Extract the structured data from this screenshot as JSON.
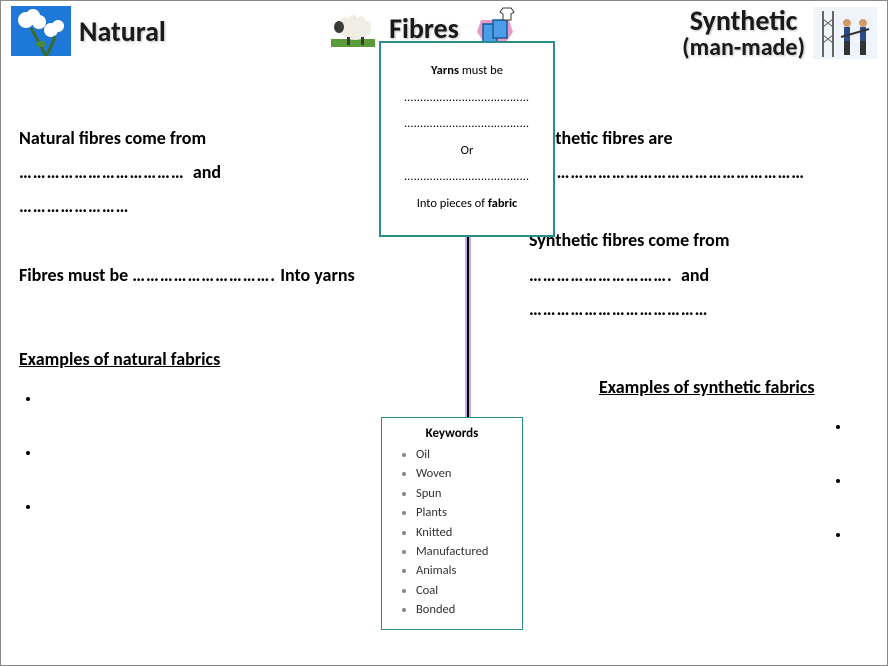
{
  "header": {
    "natural_label": "Natural",
    "fibres_label": "Fibres",
    "synthetic_label": "Synthetic",
    "synthetic_sub": "(man-made)"
  },
  "left": {
    "line1": "Natural fibres come from",
    "blank1": "………………………………",
    "and": "and",
    "blank2": "……………………",
    "line2a": "Fibres must be",
    "blank3": "………………………….",
    "line2b": "Into yarns",
    "examples_title": "Examples of  natural fabrics"
  },
  "right": {
    "line1": "Synthetic fibres are",
    "blank1": "……………………………………………………",
    "line2": "Synthetic fibres come from",
    "blank2": "………………………….",
    "and": "and",
    "blank3": "…………………………………",
    "examples_title": "Examples of  synthetic fabrics"
  },
  "yarns": {
    "lead_bold": "Yarns",
    "lead_rest": " must be",
    "blank": "…………………………………",
    "or": "Or",
    "end_a": "Into pieces of  ",
    "end_bold": "fabric"
  },
  "keywords": {
    "title": "Keywords",
    "items": [
      "Oil",
      "Woven",
      "Spun",
      "Plants",
      "Knitted",
      "Manufactured",
      "Animals",
      "Coal",
      "Bonded"
    ]
  },
  "style": {
    "box_border": "#2a8c8c",
    "connector_color": "#000000",
    "connector_glow": "#c9a8e8",
    "title_color": "#1a1a1a"
  }
}
